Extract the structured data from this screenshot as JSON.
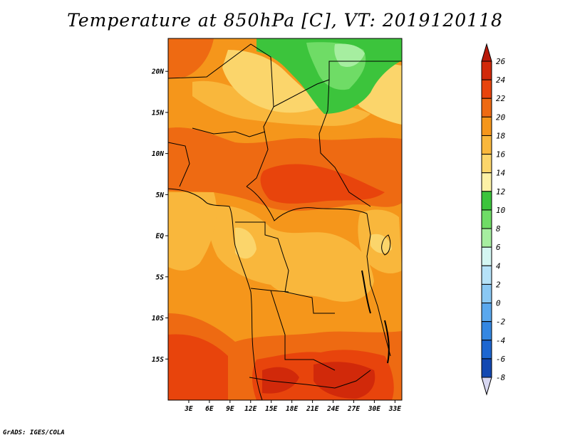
{
  "title": "Temperature at 850hPa [C], VT: 2019120118",
  "credit": "GrADS: IGES/COLA",
  "map": {
    "lon_range": [
      0,
      34
    ],
    "lat_range": [
      -20,
      24
    ],
    "lat_ticks": [
      {
        "lat": 20,
        "label": "20N"
      },
      {
        "lat": 15,
        "label": "15N"
      },
      {
        "lat": 10,
        "label": "10N"
      },
      {
        "lat": 5,
        "label": "5N"
      },
      {
        "lat": 0,
        "label": "EQ"
      },
      {
        "lat": -5,
        "label": "5S"
      },
      {
        "lat": -10,
        "label": "10S"
      },
      {
        "lat": -15,
        "label": "15S"
      }
    ],
    "lon_ticks": [
      {
        "lon": 3,
        "label": "3E"
      },
      {
        "lon": 6,
        "label": "6E"
      },
      {
        "lon": 9,
        "label": "9E"
      },
      {
        "lon": 12,
        "label": "12E"
      },
      {
        "lon": 15,
        "label": "15E"
      },
      {
        "lon": 18,
        "label": "18E"
      },
      {
        "lon": 21,
        "label": "21E"
      },
      {
        "lon": 24,
        "label": "24E"
      },
      {
        "lon": 27,
        "label": "27E"
      },
      {
        "lon": 30,
        "label": "30E"
      },
      {
        "lon": 33,
        "label": "33E"
      }
    ]
  },
  "colorbar": {
    "unit": "C",
    "levels": [
      {
        "label": "26",
        "color": "#d1290a"
      },
      {
        "label": "24",
        "color": "#e8440c"
      },
      {
        "label": "22",
        "color": "#ee6a12"
      },
      {
        "label": "20",
        "color": "#f5961b"
      },
      {
        "label": "18",
        "color": "#f9b73c"
      },
      {
        "label": "16",
        "color": "#fbd56b"
      },
      {
        "label": "14",
        "color": "#fcf1a6"
      },
      {
        "label": "12",
        "color": "#3cc43c"
      },
      {
        "label": "10",
        "color": "#6fdc66"
      },
      {
        "label": "8",
        "color": "#a6eea0"
      },
      {
        "label": "6",
        "color": "#d4f6f2"
      },
      {
        "label": "4",
        "color": "#b6e2f8"
      },
      {
        "label": "2",
        "color": "#8ac8f4"
      },
      {
        "label": "0",
        "color": "#5aa8ee"
      },
      {
        "label": "-2",
        "color": "#3487e2"
      },
      {
        "label": "-4",
        "color": "#1d66d0"
      },
      {
        "label": "-6",
        "color": "#1248b2"
      },
      {
        "label": "-8",
        "color": "#0a1f80"
      }
    ],
    "top_color": "#b8190a",
    "bottom_color": "#d8d8f2"
  }
}
